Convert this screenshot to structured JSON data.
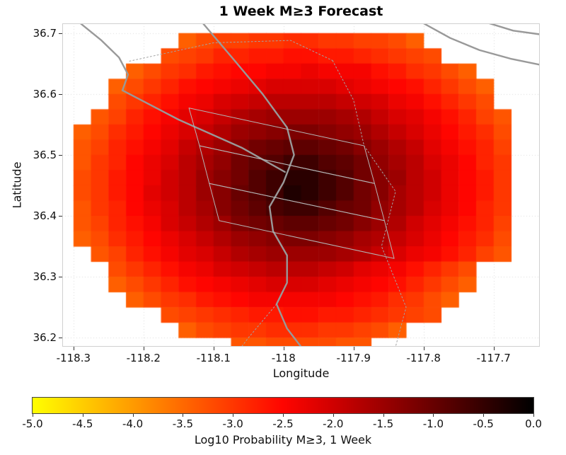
{
  "chart_data": {
    "type": "heatmap",
    "title": "1 Week M≥3 Forecast",
    "xlabel": "Longitude",
    "ylabel": "Latitude",
    "x_tick_labels": [
      "-118.3",
      "-118.2",
      "-118.1",
      "-118",
      "-117.9",
      "-117.8",
      "-117.7"
    ],
    "x_tick_values": [
      -118.3,
      -118.2,
      -118.1,
      -118.0,
      -117.9,
      -117.8,
      -117.7
    ],
    "y_tick_labels": [
      "36.7",
      "36.6",
      "36.5",
      "36.4",
      "36.3",
      "36.2"
    ],
    "y_tick_values": [
      36.7,
      36.6,
      36.5,
      36.4,
      36.3,
      36.2
    ],
    "xlim": [
      -118.316,
      -117.634
    ],
    "ylim": [
      36.185,
      36.716
    ],
    "grid_on": true,
    "colorbar": {
      "label": "Log10 Probability M≥3, 1 Week",
      "min": -5,
      "max": 0,
      "tick_labels": [
        "-5.0",
        "-4.5",
        "-4.0",
        "-3.5",
        "-3.0",
        "-2.5",
        "-2.0",
        "-1.5",
        "-1.0",
        "-0.5",
        "0.0"
      ],
      "colormap": "hot-reversed",
      "stops": [
        {
          "v": -5.0,
          "rgb": [
            255,
            255,
            0
          ]
        },
        {
          "v": -4.5,
          "rgb": [
            255,
            205,
            0
          ]
        },
        {
          "v": -4.0,
          "rgb": [
            255,
            155,
            0
          ]
        },
        {
          "v": -3.5,
          "rgb": [
            255,
            105,
            0
          ]
        },
        {
          "v": -3.0,
          "rgb": [
            255,
            55,
            0
          ]
        },
        {
          "v": -2.5,
          "rgb": [
            255,
            5,
            0
          ]
        },
        {
          "v": -2.0,
          "rgb": [
            208,
            0,
            0
          ]
        },
        {
          "v": -1.5,
          "rgb": [
            156,
            0,
            0
          ]
        },
        {
          "v": -1.0,
          "rgb": [
            104,
            0,
            0
          ]
        },
        {
          "v": -0.5,
          "rgb": [
            52,
            0,
            0
          ]
        },
        {
          "v": 0.0,
          "rgb": [
            0,
            0,
            0
          ]
        }
      ]
    },
    "heatmap": {
      "lon0": -118.3,
      "lat0": 36.7,
      "dlon": 0.025,
      "dlat": 0.025,
      "ncols": 25,
      "nrows": 21,
      "values": [
        [
          null,
          null,
          null,
          null,
          null,
          null,
          -3.4,
          -3.2,
          -3.1,
          -3.1,
          -3.0,
          -3.0,
          -2.9,
          -2.9,
          -3.0,
          -3.0,
          -3.1,
          -3.1,
          -3.2,
          -3.4,
          null,
          null,
          null,
          null,
          null
        ],
        [
          null,
          null,
          null,
          null,
          null,
          -3.2,
          -3.1,
          -3.0,
          -2.8,
          -2.8,
          -2.7,
          -2.7,
          -2.6,
          -2.6,
          -2.7,
          -2.7,
          -2.8,
          -2.9,
          -3.0,
          -3.1,
          -3.2,
          null,
          null,
          null,
          null
        ],
        [
          null,
          null,
          null,
          -3.4,
          -3.2,
          -3.0,
          -2.9,
          -2.7,
          -2.6,
          -2.5,
          -2.5,
          -2.4,
          -2.4,
          -2.3,
          -2.4,
          -2.4,
          -2.4,
          -2.6,
          -2.7,
          -2.9,
          -3.0,
          -3.2,
          -3.4,
          null,
          null
        ],
        [
          null,
          null,
          -3.4,
          -3.2,
          -3.0,
          -2.8,
          -2.6,
          -2.5,
          -2.4,
          -2.3,
          -2.2,
          -2.1,
          -2.1,
          -2.1,
          -2.1,
          -2.2,
          -2.3,
          -2.4,
          -2.5,
          -2.6,
          -2.8,
          -3.0,
          -3.2,
          -3.4,
          null
        ],
        [
          null,
          null,
          -3.2,
          -3.0,
          -2.8,
          -2.6,
          -2.4,
          -2.3,
          -2.1,
          -2.0,
          -1.9,
          -1.8,
          -1.8,
          -1.8,
          -1.8,
          -1.9,
          -2.0,
          -2.1,
          -2.3,
          -2.4,
          -2.6,
          -2.8,
          -3.0,
          -3.2,
          null
        ],
        [
          null,
          -3.3,
          -3.1,
          -2.8,
          -2.6,
          -2.4,
          -2.2,
          -2.1,
          -1.9,
          -1.7,
          -1.6,
          -1.5,
          -1.5,
          -1.5,
          -1.5,
          -1.6,
          -1.7,
          -1.9,
          -2.1,
          -2.2,
          -2.4,
          -2.6,
          -2.8,
          -3.1,
          -3.3
        ],
        [
          -3.4,
          -3.2,
          -2.9,
          -2.7,
          -2.5,
          -2.3,
          -2.1,
          -1.9,
          -1.7,
          -1.5,
          -1.4,
          -1.3,
          -1.2,
          -1.2,
          -1.3,
          -1.4,
          -1.5,
          -1.7,
          -1.9,
          -2.1,
          -2.3,
          -2.5,
          -2.7,
          -2.9,
          -3.2
        ],
        [
          -3.3,
          -3.1,
          -2.8,
          -2.6,
          -2.4,
          -2.2,
          -1.9,
          -1.7,
          -1.5,
          -1.3,
          -1.1,
          -1.0,
          -0.9,
          -0.9,
          -1.0,
          -1.1,
          -1.3,
          -1.5,
          -1.7,
          -1.9,
          -2.2,
          -2.4,
          -2.6,
          -2.8,
          -3.1
        ],
        [
          -3.3,
          -3.0,
          -2.8,
          -2.5,
          -2.3,
          -2.1,
          -1.8,
          -1.6,
          -1.4,
          -1.1,
          -0.9,
          -0.8,
          -0.6,
          -0.6,
          -0.8,
          -0.9,
          -1.1,
          -1.4,
          -1.6,
          -1.8,
          -2.1,
          -2.3,
          -2.5,
          -2.8,
          -3.0
        ],
        [
          -3.2,
          -3.0,
          -2.7,
          -2.5,
          -2.3,
          -2.0,
          -1.8,
          -1.5,
          -1.3,
          -1.1,
          -0.8,
          -0.6,
          -0.4,
          -0.4,
          -0.6,
          -0.8,
          -1.1,
          -1.3,
          -1.5,
          -1.8,
          -2.0,
          -2.3,
          -2.5,
          -2.7,
          -3.0
        ],
        [
          -3.2,
          -3.0,
          -2.7,
          -2.5,
          -2.2,
          -2.0,
          -1.8,
          -1.5,
          -1.3,
          -1.0,
          -0.8,
          -0.6,
          -0.3,
          -0.4,
          -0.6,
          -0.8,
          -1.1,
          -1.3,
          -1.6,
          -1.8,
          -2.0,
          -2.3,
          -2.5,
          -2.7,
          -3.0
        ],
        [
          -3.3,
          -3.0,
          -2.8,
          -2.5,
          -2.3,
          -2.1,
          -1.8,
          -1.6,
          -1.3,
          -1.1,
          -0.9,
          -0.7,
          -0.6,
          -0.6,
          -0.8,
          -1.0,
          -1.1,
          -1.4,
          -1.6,
          -1.8,
          -2.1,
          -2.3,
          -2.5,
          -2.8,
          -3.0
        ],
        [
          -3.3,
          -3.1,
          -2.8,
          -2.6,
          -2.4,
          -2.1,
          -1.9,
          -1.7,
          -1.5,
          -1.2,
          -1.1,
          -1.0,
          -0.9,
          -0.9,
          -1.0,
          -1.1,
          -1.3,
          -1.5,
          -1.7,
          -2.0,
          -2.2,
          -2.4,
          -2.6,
          -2.8,
          -3.1
        ],
        [
          -3.4,
          -3.2,
          -2.9,
          -2.7,
          -2.5,
          -2.3,
          -2.1,
          -1.9,
          -1.7,
          -1.5,
          -1.4,
          -1.3,
          -1.2,
          -1.2,
          -1.3,
          -1.4,
          -1.6,
          -1.7,
          -1.9,
          -2.1,
          -2.3,
          -2.5,
          -2.7,
          -2.9,
          -3.2
        ],
        [
          null,
          -3.3,
          -3.1,
          -2.8,
          -2.6,
          -2.4,
          -2.2,
          -2.1,
          -1.9,
          -1.7,
          -1.6,
          -1.5,
          -1.5,
          -1.5,
          -1.5,
          -1.6,
          -1.7,
          -1.9,
          -2.1,
          -2.3,
          -2.4,
          -2.6,
          -2.8,
          -3.1,
          -3.3
        ],
        [
          null,
          null,
          -3.2,
          -3.0,
          -2.8,
          -2.6,
          -2.4,
          -2.3,
          -2.1,
          -2.0,
          -1.9,
          -1.8,
          -1.8,
          -1.8,
          -1.9,
          -2.0,
          -2.2,
          -2.3,
          -2.4,
          -2.6,
          -2.8,
          -3.0,
          -3.2,
          null,
          null
        ],
        [
          null,
          null,
          -3.4,
          -3.2,
          -3.0,
          -2.8,
          -2.6,
          -2.5,
          -2.4,
          -2.3,
          -2.2,
          -2.1,
          -2.1,
          -2.1,
          -2.2,
          -2.3,
          -2.4,
          -2.5,
          -2.6,
          -2.8,
          -3.0,
          -3.2,
          -3.4,
          null,
          null
        ],
        [
          null,
          null,
          null,
          -3.4,
          -3.2,
          -3.0,
          -2.9,
          -2.7,
          -2.6,
          -2.5,
          -2.4,
          -2.4,
          -2.4,
          -2.4,
          -2.4,
          -2.5,
          -2.6,
          -2.7,
          -2.9,
          -3.0,
          -3.2,
          -3.4,
          null,
          null,
          null
        ],
        [
          null,
          null,
          null,
          null,
          null,
          -3.2,
          -3.1,
          -3.0,
          -2.9,
          -2.8,
          -2.7,
          -2.7,
          -2.6,
          -2.6,
          -2.7,
          -2.7,
          -2.8,
          -2.9,
          -3.0,
          -3.1,
          -3.2,
          null,
          null,
          null,
          null
        ],
        [
          null,
          null,
          null,
          null,
          null,
          null,
          -3.4,
          -3.2,
          -3.1,
          -3.0,
          -3.0,
          -2.9,
          -2.9,
          -2.9,
          -3.0,
          -3.0,
          -3.1,
          -3.2,
          -3.4,
          null,
          null,
          null,
          null,
          null,
          null
        ],
        [
          null,
          null,
          null,
          null,
          null,
          null,
          null,
          null,
          null,
          -3.3,
          -3.3,
          -3.2,
          -3.2,
          -3.2,
          -3.2,
          -3.3,
          -3.3,
          null,
          null,
          null,
          null,
          null,
          null,
          null,
          null
        ]
      ]
    },
    "overlays": {
      "roads": [
        [
          [
            -118.115,
            36.716
          ],
          [
            -118.07,
            36.655
          ],
          [
            -118.03,
            36.6
          ],
          [
            -117.995,
            36.545
          ],
          [
            -117.985,
            36.5
          ],
          [
            -118.0,
            36.455
          ],
          [
            -118.02,
            36.415
          ],
          [
            -118.015,
            36.375
          ],
          [
            -117.995,
            36.335
          ],
          [
            -117.995,
            36.29
          ],
          [
            -118.01,
            36.255
          ],
          [
            -117.995,
            36.215
          ],
          [
            -117.975,
            36.185
          ]
        ],
        [
          [
            -118.29,
            36.716
          ],
          [
            -118.26,
            36.688
          ],
          [
            -118.235,
            36.66
          ],
          [
            -118.222,
            36.632
          ],
          [
            -118.23,
            36.606
          ]
        ],
        [
          [
            -118.23,
            36.606
          ],
          [
            -118.15,
            36.558
          ],
          [
            -118.06,
            36.512
          ],
          [
            -117.998,
            36.472
          ]
        ],
        [
          [
            -117.8,
            36.716
          ],
          [
            -117.762,
            36.692
          ],
          [
            -117.72,
            36.672
          ],
          [
            -117.676,
            36.658
          ],
          [
            -117.634,
            36.648
          ]
        ],
        [
          [
            -117.706,
            36.716
          ],
          [
            -117.672,
            36.704
          ],
          [
            -117.634,
            36.698
          ]
        ]
      ],
      "fault_sections": [
        [
          [
            -118.135,
            36.577
          ],
          [
            -117.885,
            36.515
          ],
          [
            -117.87,
            36.453
          ],
          [
            -118.12,
            36.515
          ],
          [
            -118.135,
            36.577
          ]
        ],
        [
          [
            -118.12,
            36.515
          ],
          [
            -117.87,
            36.453
          ],
          [
            -117.856,
            36.392
          ],
          [
            -118.106,
            36.453
          ],
          [
            -118.12,
            36.515
          ]
        ],
        [
          [
            -118.106,
            36.453
          ],
          [
            -117.856,
            36.392
          ],
          [
            -117.842,
            36.33
          ],
          [
            -118.092,
            36.392
          ],
          [
            -118.106,
            36.453
          ]
        ]
      ],
      "boundaries": [
        [
          [
            -118.22,
            36.654
          ],
          [
            -118.1,
            36.684
          ],
          [
            -117.99,
            36.688
          ],
          [
            -117.93,
            36.655
          ]
        ],
        [
          [
            -117.93,
            36.655
          ],
          [
            -117.9,
            36.59
          ],
          [
            -117.885,
            36.515
          ]
        ],
        [
          [
            -117.885,
            36.515
          ],
          [
            -117.84,
            36.44
          ],
          [
            -117.86,
            36.35
          ],
          [
            -117.825,
            36.25
          ],
          [
            -117.84,
            36.185
          ]
        ],
        [
          [
            -118.01,
            36.255
          ],
          [
            -118.05,
            36.2
          ],
          [
            -118.06,
            36.185
          ]
        ]
      ]
    }
  }
}
